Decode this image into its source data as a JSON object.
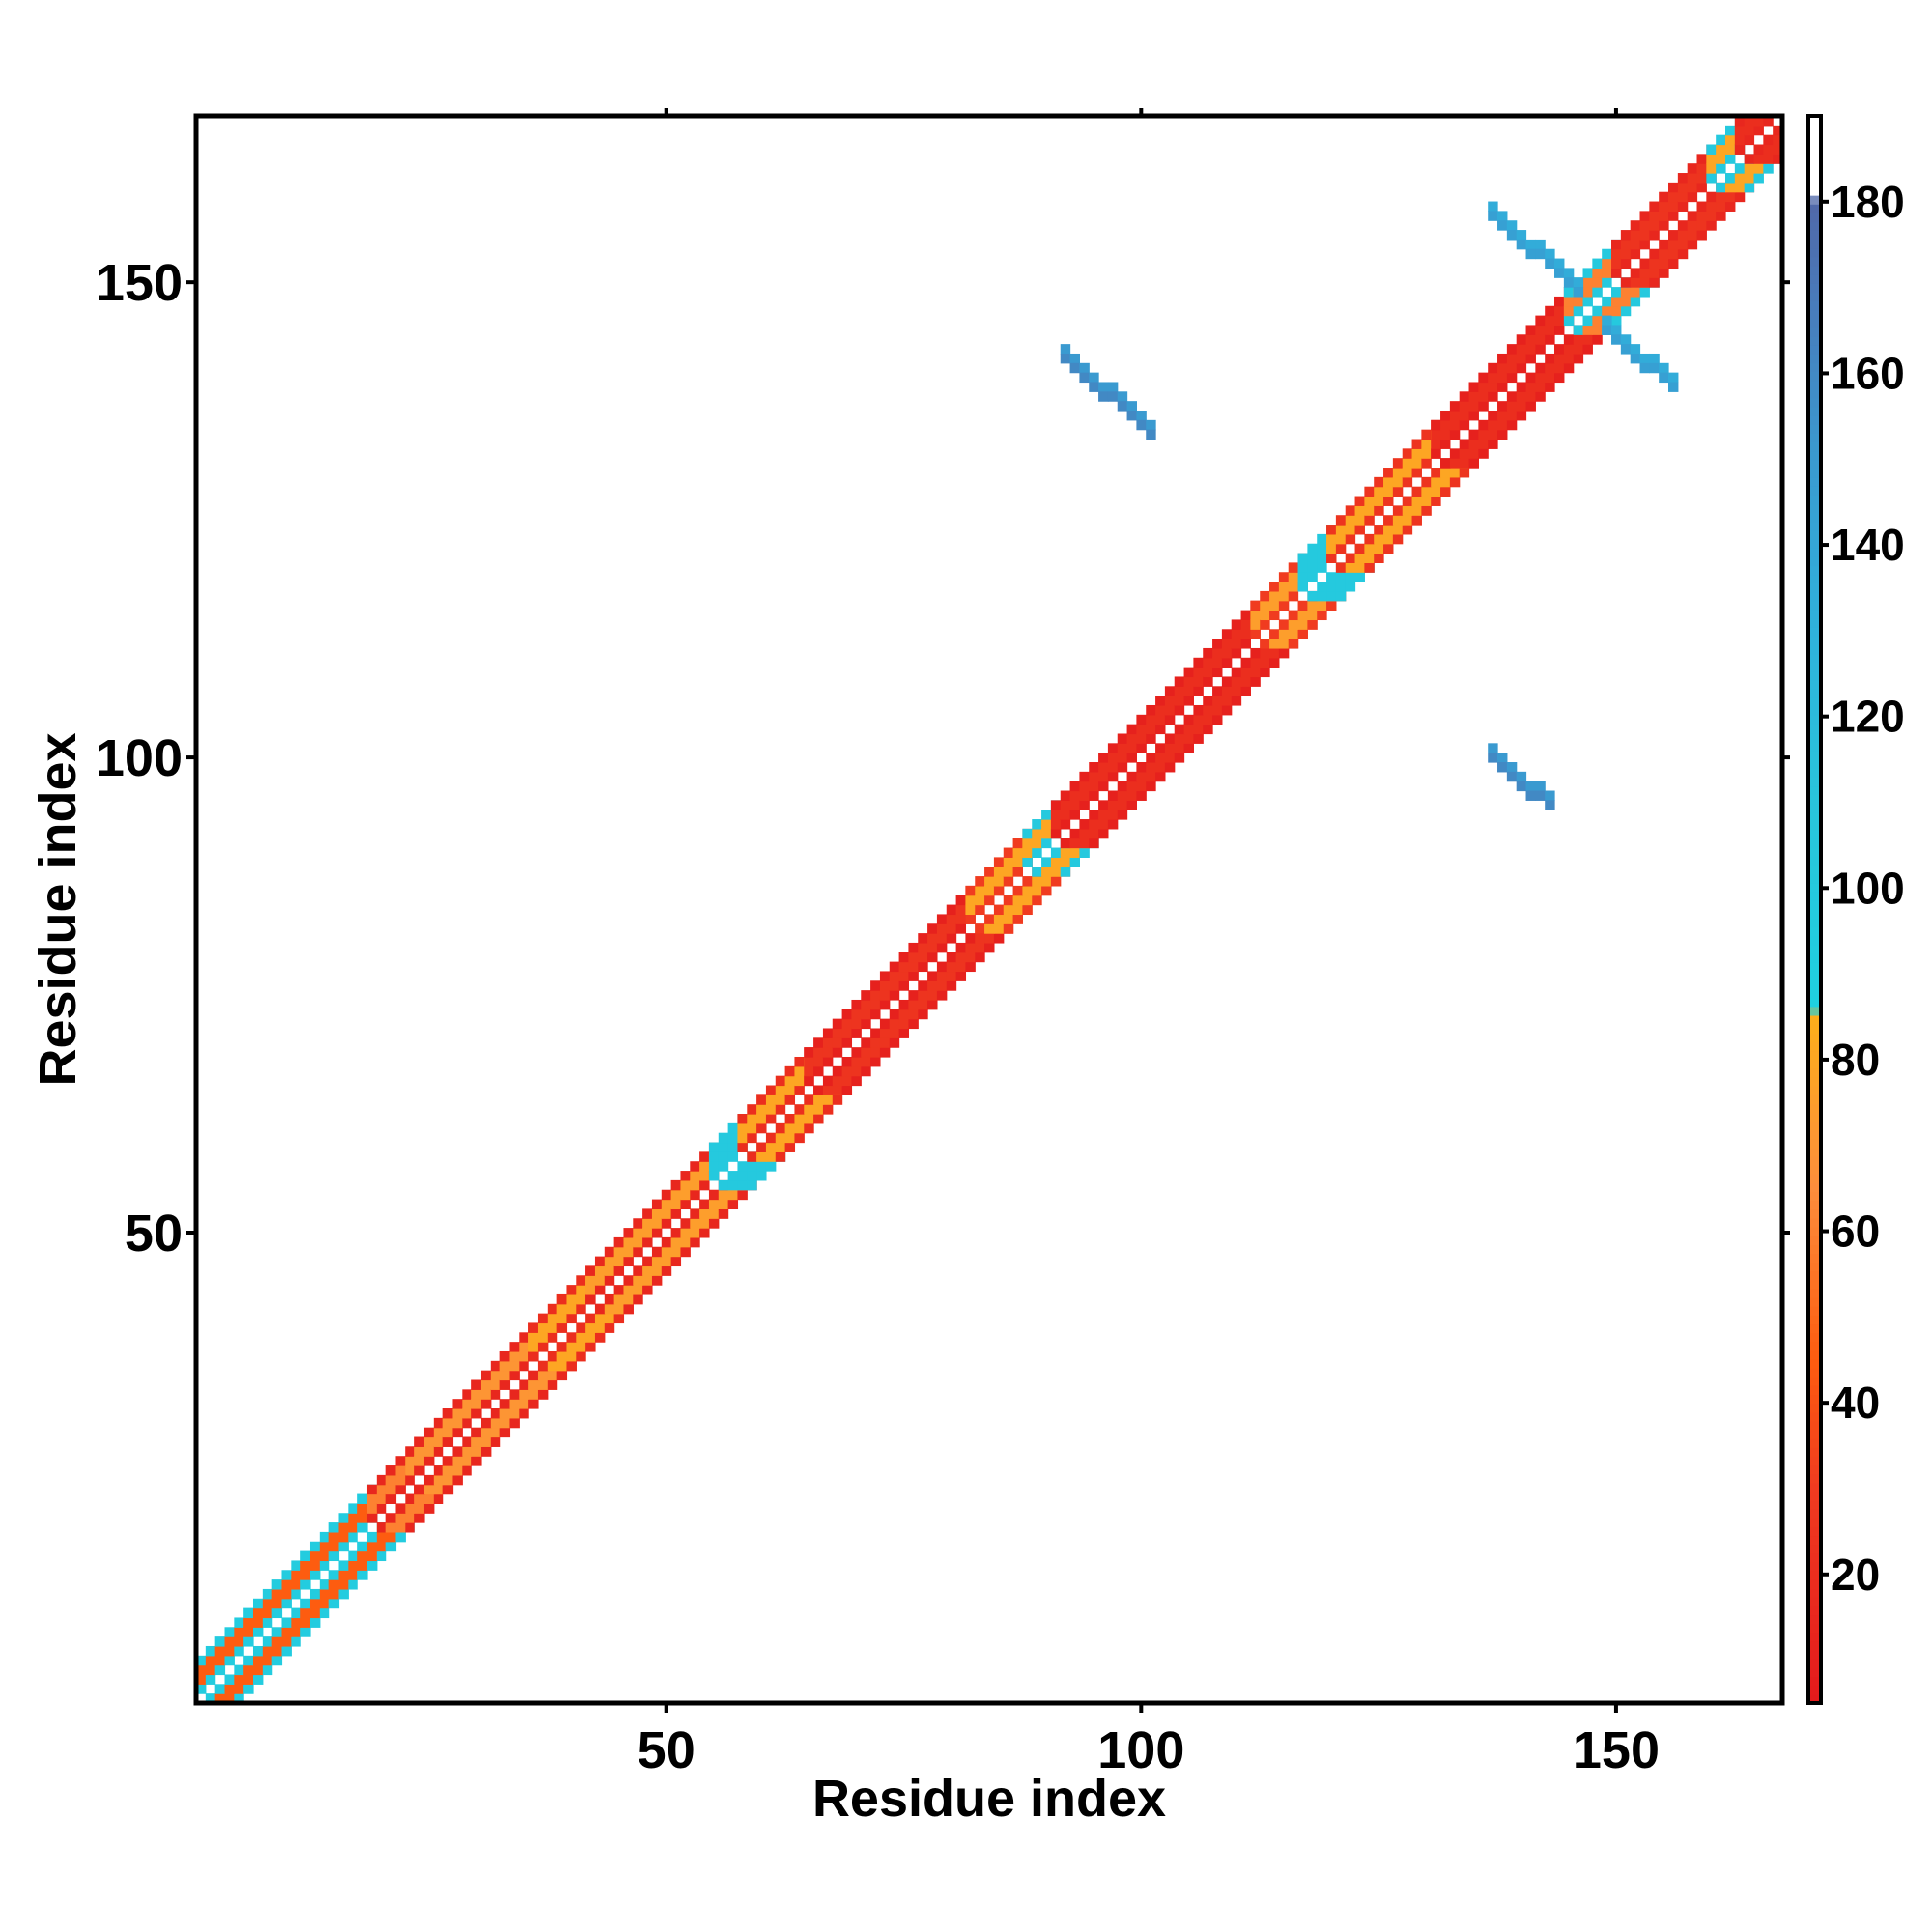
{
  "chart_data": {
    "type": "heatmap",
    "title": "",
    "xlabel": "Residue index",
    "ylabel": "Residue index",
    "xlim": [
      1,
      167
    ],
    "ylim": [
      1,
      167
    ],
    "x_ticks": [
      50,
      100,
      150
    ],
    "y_ticks": [
      50,
      100,
      150
    ],
    "grid": false,
    "legend": "colorbar-right",
    "colorbar": {
      "range": [
        5,
        190
      ],
      "ticks": [
        20,
        40,
        60,
        80,
        100,
        120,
        140,
        160,
        180
      ],
      "stops": [
        {
          "value": 5,
          "color": "#e31a1c"
        },
        {
          "value": 30,
          "color": "#f03b20"
        },
        {
          "value": 45,
          "color": "#fd5c10"
        },
        {
          "value": 65,
          "color": "#fd8d3c"
        },
        {
          "value": 85,
          "color": "#fdae1b"
        },
        {
          "value": 86,
          "color": "#1fd0e0"
        },
        {
          "value": 110,
          "color": "#29c4dc"
        },
        {
          "value": 130,
          "color": "#2fb2dc"
        },
        {
          "value": 150,
          "color": "#3a9ad0"
        },
        {
          "value": 170,
          "color": "#4a78b8"
        },
        {
          "value": 180,
          "color": "#5068a8"
        },
        {
          "value": 181,
          "color": "#ffffff"
        },
        {
          "value": 190,
          "color": "#ffffff"
        }
      ]
    },
    "diagonal_band": {
      "description_values": "residue pairs (i,j) with |i-j| = 1..4 colored by value",
      "segments": [
        {
          "from": 1,
          "to": 19,
          "near_value": 95,
          "far_value": 45
        },
        {
          "from": 19,
          "to": 23,
          "near_value": 15,
          "far_value": 60
        },
        {
          "from": 23,
          "to": 36,
          "near_value": 15,
          "far_value": 70
        },
        {
          "from": 36,
          "to": 42,
          "near_value": 20,
          "far_value": 80
        },
        {
          "from": 42,
          "to": 55,
          "near_value": 15,
          "far_value": 75
        },
        {
          "from": 55,
          "to": 58,
          "near_value": 100,
          "far_value": 100
        },
        {
          "from": 58,
          "to": 65,
          "near_value": 20,
          "far_value": 80
        },
        {
          "from": 65,
          "to": 82,
          "near_value": 10,
          "far_value": 25
        },
        {
          "from": 82,
          "to": 88,
          "near_value": 30,
          "far_value": 80
        },
        {
          "from": 88,
          "to": 91,
          "near_value": 100,
          "far_value": 80
        },
        {
          "from": 91,
          "to": 112,
          "near_value": 10,
          "far_value": 20
        },
        {
          "from": 112,
          "to": 117,
          "near_value": 30,
          "far_value": 75
        },
        {
          "from": 117,
          "to": 120,
          "near_value": 100,
          "far_value": 100
        },
        {
          "from": 120,
          "to": 131,
          "near_value": 25,
          "far_value": 80
        },
        {
          "from": 131,
          "to": 145,
          "near_value": 10,
          "far_value": 20
        },
        {
          "from": 145,
          "to": 150,
          "near_value": 100,
          "far_value": 60
        },
        {
          "from": 150,
          "to": 160,
          "near_value": 15,
          "far_value": 25
        },
        {
          "from": 160,
          "to": 163,
          "near_value": 100,
          "far_value": 80
        },
        {
          "from": 163,
          "to": 167,
          "near_value": 15,
          "far_value": 20
        }
      ]
    },
    "off_diagonal_contacts": [
      {
        "name": "sheet-contact-1",
        "x_range": [
          92,
          101
        ],
        "y_start": 143,
        "value": 150
      },
      {
        "name": "sheet-contact-2",
        "x_range": [
          137,
          143
        ],
        "y_start": 101,
        "value": 150
      },
      {
        "name": "antiparallel-upper",
        "x_range": [
          137,
          146
        ],
        "y_start": 158,
        "value": 135
      },
      {
        "name": "antiparallel-lower",
        "x_range": [
          149,
          156
        ],
        "y_start": 146,
        "value": 135
      }
    ]
  }
}
